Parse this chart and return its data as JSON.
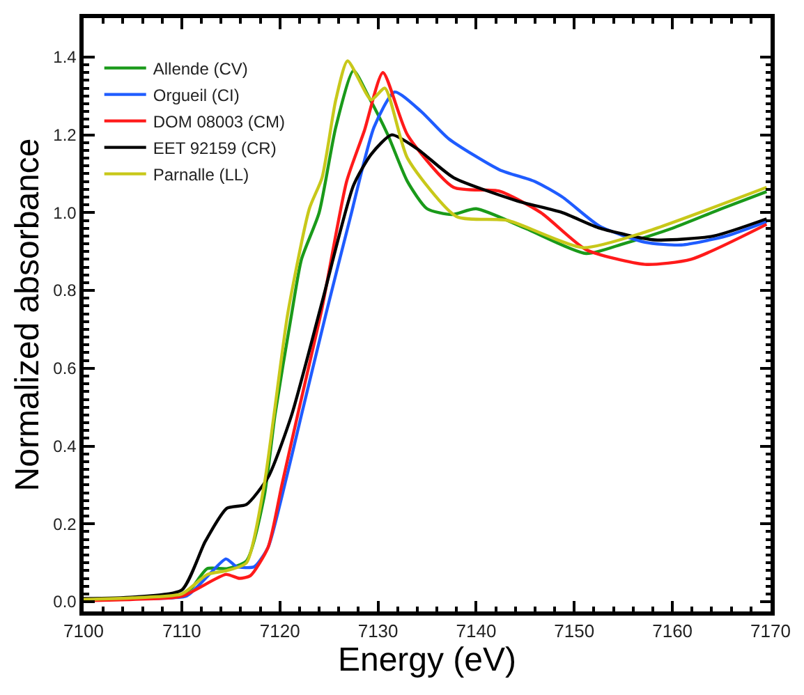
{
  "chart_data": {
    "type": "line",
    "xlabel": "Energy (eV)",
    "ylabel": "Normalized absorbance",
    "xlim": [
      7100,
      7170
    ],
    "ylim": [
      -0.025,
      1.5
    ],
    "xticks": [
      7100,
      7110,
      7120,
      7130,
      7140,
      7150,
      7160,
      7170
    ],
    "yticks": [
      {
        "value": 0,
        "label": "0.0"
      },
      {
        "value": 0.2,
        "label": "0.2"
      },
      {
        "value": 0.4,
        "label": "0.4"
      },
      {
        "value": 0.6,
        "label": "0.6"
      },
      {
        "value": 0.8,
        "label": "0.8"
      },
      {
        "value": 1.0,
        "label": "1.0"
      },
      {
        "value": 1.2,
        "label": "1.2"
      },
      {
        "value": 1.4,
        "label": "1.4"
      }
    ],
    "legend": "top left",
    "marker": "none",
    "line_style": "solid",
    "series": [
      {
        "name": "Allende (CV)",
        "color": "#1a9a1a",
        "x": [
          7110,
          7111,
          7112.6,
          7114.6,
          7116.6,
          7118.4,
          7119.5,
          7121.2,
          7122.2,
          7124,
          7125.7,
          7127.5,
          7129,
          7131,
          7133,
          7135,
          7137.5,
          7140,
          7145,
          7151.2,
          7155,
          7160,
          7165,
          7169.6
        ],
        "values": [
          0.02,
          0.035,
          0.085,
          0.085,
          0.105,
          0.27,
          0.48,
          0.74,
          0.88,
          1.0,
          1.22,
          1.365,
          1.3,
          1.2,
          1.08,
          1.01,
          0.995,
          1.01,
          0.96,
          0.895,
          0.92,
          0.96,
          1.01,
          1.054
        ]
      },
      {
        "name": "Orgueil (CI)",
        "color": "#1f5cff",
        "x": [
          7100,
          7105,
          7110.5,
          7112.8,
          7114.5,
          7115.6,
          7117.4,
          7118.8,
          7120.2,
          7122.2,
          7124.7,
          7127.2,
          7129.6,
          7131.7,
          7134.4,
          7137.2,
          7142.4,
          7146,
          7148.8,
          7152.6,
          7157.2,
          7160.9,
          7165.5,
          7169.6
        ],
        "values": [
          0.005,
          0.008,
          0.015,
          0.07,
          0.11,
          0.09,
          0.09,
          0.14,
          0.27,
          0.48,
          0.74,
          0.99,
          1.22,
          1.31,
          1.26,
          1.19,
          1.11,
          1.08,
          1.04,
          0.965,
          0.924,
          0.917,
          0.94,
          0.977
        ]
      },
      {
        "name": "DOM 08003 (CM)",
        "color": "#ff1a1a",
        "x": [
          7100,
          7105,
          7110,
          7114.5,
          7115.9,
          7117,
          7118.8,
          7120.2,
          7121.9,
          7124.3,
          7126.8,
          7128.6,
          7130.5,
          7133,
          7137.7,
          7142.4,
          7146.6,
          7151.2,
          7157.2,
          7161.9,
          7169.6
        ],
        "values": [
          0.003,
          0.006,
          0.014,
          0.07,
          0.06,
          0.067,
          0.14,
          0.3,
          0.49,
          0.755,
          1.08,
          1.21,
          1.36,
          1.2,
          1.065,
          1.055,
          1.0,
          0.905,
          0.867,
          0.88,
          0.97
        ]
      },
      {
        "name": "EET 92159 (CR)",
        "color": "#000000",
        "x": [
          7100,
          7105,
          7110,
          7112.4,
          7114.6,
          7116.6,
          7118.8,
          7121.2,
          7124.3,
          7127.5,
          7129.3,
          7131.4,
          7134,
          7137.7,
          7144.2,
          7148.8,
          7152.6,
          7158.2,
          7164.2,
          7169.6
        ],
        "values": [
          0.008,
          0.012,
          0.03,
          0.155,
          0.24,
          0.25,
          0.32,
          0.48,
          0.77,
          1.07,
          1.15,
          1.2,
          1.164,
          1.09,
          1.03,
          1.0,
          0.96,
          0.93,
          0.94,
          0.984
        ]
      },
      {
        "name": "Parnalle (LL)",
        "color": "#c8c81a",
        "x": [
          7100,
          7105,
          7110,
          7112.6,
          7114.6,
          7116.6,
          7118.4,
          7119.4,
          7120.8,
          7123,
          7124.3,
          7125.7,
          7126.9,
          7129.3,
          7130.7,
          7133,
          7138,
          7143.2,
          7150.9,
          7157.2,
          7169.6
        ],
        "values": [
          0.006,
          0.01,
          0.02,
          0.07,
          0.08,
          0.1,
          0.3,
          0.48,
          0.74,
          1.01,
          1.09,
          1.29,
          1.39,
          1.29,
          1.32,
          1.14,
          0.99,
          0.98,
          0.91,
          0.95,
          1.065
        ]
      }
    ]
  }
}
